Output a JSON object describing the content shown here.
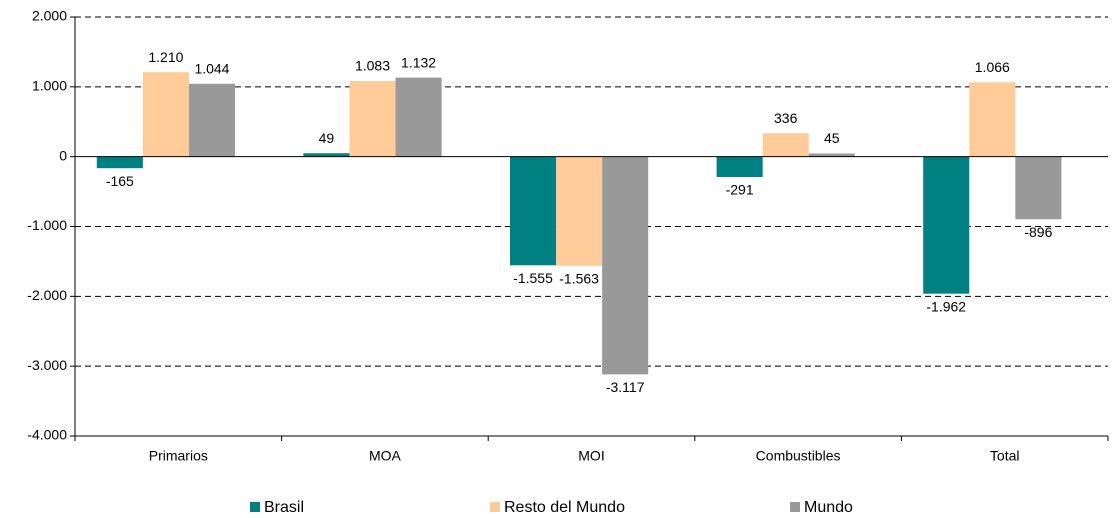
{
  "chart_data": {
    "type": "bar",
    "categories": [
      "Primarios",
      "MOA",
      "MOI",
      "Combustibles",
      "Total"
    ],
    "series": [
      {
        "name": "Brasil",
        "color": "#008080",
        "values": [
          -165,
          49,
          -1555,
          -291,
          -1962
        ],
        "value_labels": [
          "-165",
          "49",
          "-1.555",
          "-291",
          "-1.962"
        ]
      },
      {
        "name": "Resto del Mundo",
        "color": "#ffcc99",
        "values": [
          1210,
          1083,
          -1563,
          336,
          1066
        ],
        "value_labels": [
          "1.210",
          "1.083",
          "-1.563",
          "336",
          "1.066"
        ]
      },
      {
        "name": "Mundo",
        "color": "#999999",
        "values": [
          1044,
          1132,
          -3117,
          45,
          -896
        ],
        "value_labels": [
          "1.044",
          "1.132",
          "-3.117",
          "45",
          "-896"
        ]
      }
    ],
    "ylim": [
      -4000,
      2000
    ],
    "yticks": [
      {
        "value": -4000,
        "label": "-4.000"
      },
      {
        "value": -3000,
        "label": "-3.000"
      },
      {
        "value": -2000,
        "label": "-2.000"
      },
      {
        "value": -1000,
        "label": "-1.000"
      },
      0,
      {
        "value": 1000,
        "label": "1.000"
      },
      {
        "value": 2000,
        "label": "2.000"
      }
    ],
    "grid": true,
    "legend": "bottom"
  }
}
